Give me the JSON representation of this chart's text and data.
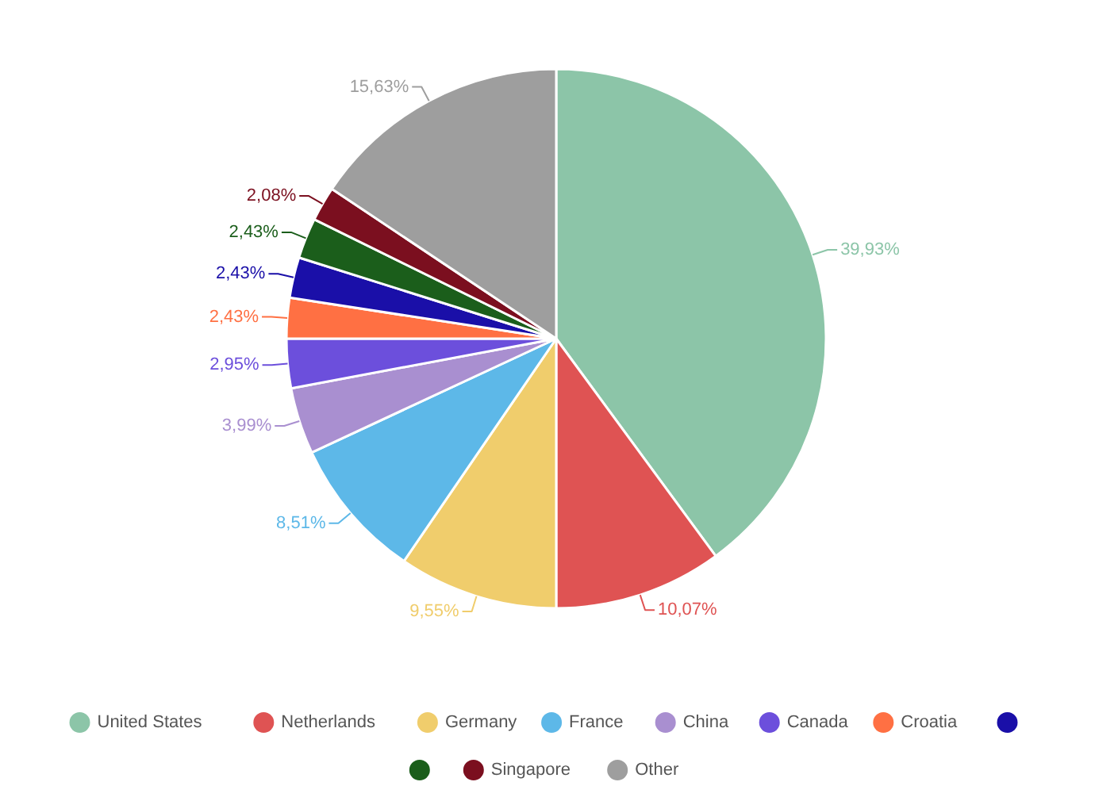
{
  "chart_data": {
    "type": "pie",
    "categories": [
      "United States",
      "Netherlands",
      "Germany",
      "France",
      "China",
      "Canada",
      "Croatia",
      null,
      null,
      "Singapore",
      "Other"
    ],
    "values": [
      39.93,
      10.07,
      9.55,
      8.51,
      3.99,
      2.95,
      2.43,
      2.43,
      2.43,
      2.08,
      15.63
    ],
    "value_labels": [
      "39,93%",
      "10,07%",
      "9,55%",
      "8,51%",
      "3,99%",
      "2,95%",
      "2,43%",
      "2,43%",
      "2,43%",
      "2,08%",
      "15,63%"
    ],
    "colors": [
      "#8cc5a8",
      "#df5353",
      "#f0cd6c",
      "#5db8e8",
      "#a98fd0",
      "#6c4fdc",
      "#ff7043",
      "#1a0fa8",
      "#1b5e1b",
      "#7b0f1f",
      "#9e9e9e"
    ],
    "legend": "bottom"
  }
}
